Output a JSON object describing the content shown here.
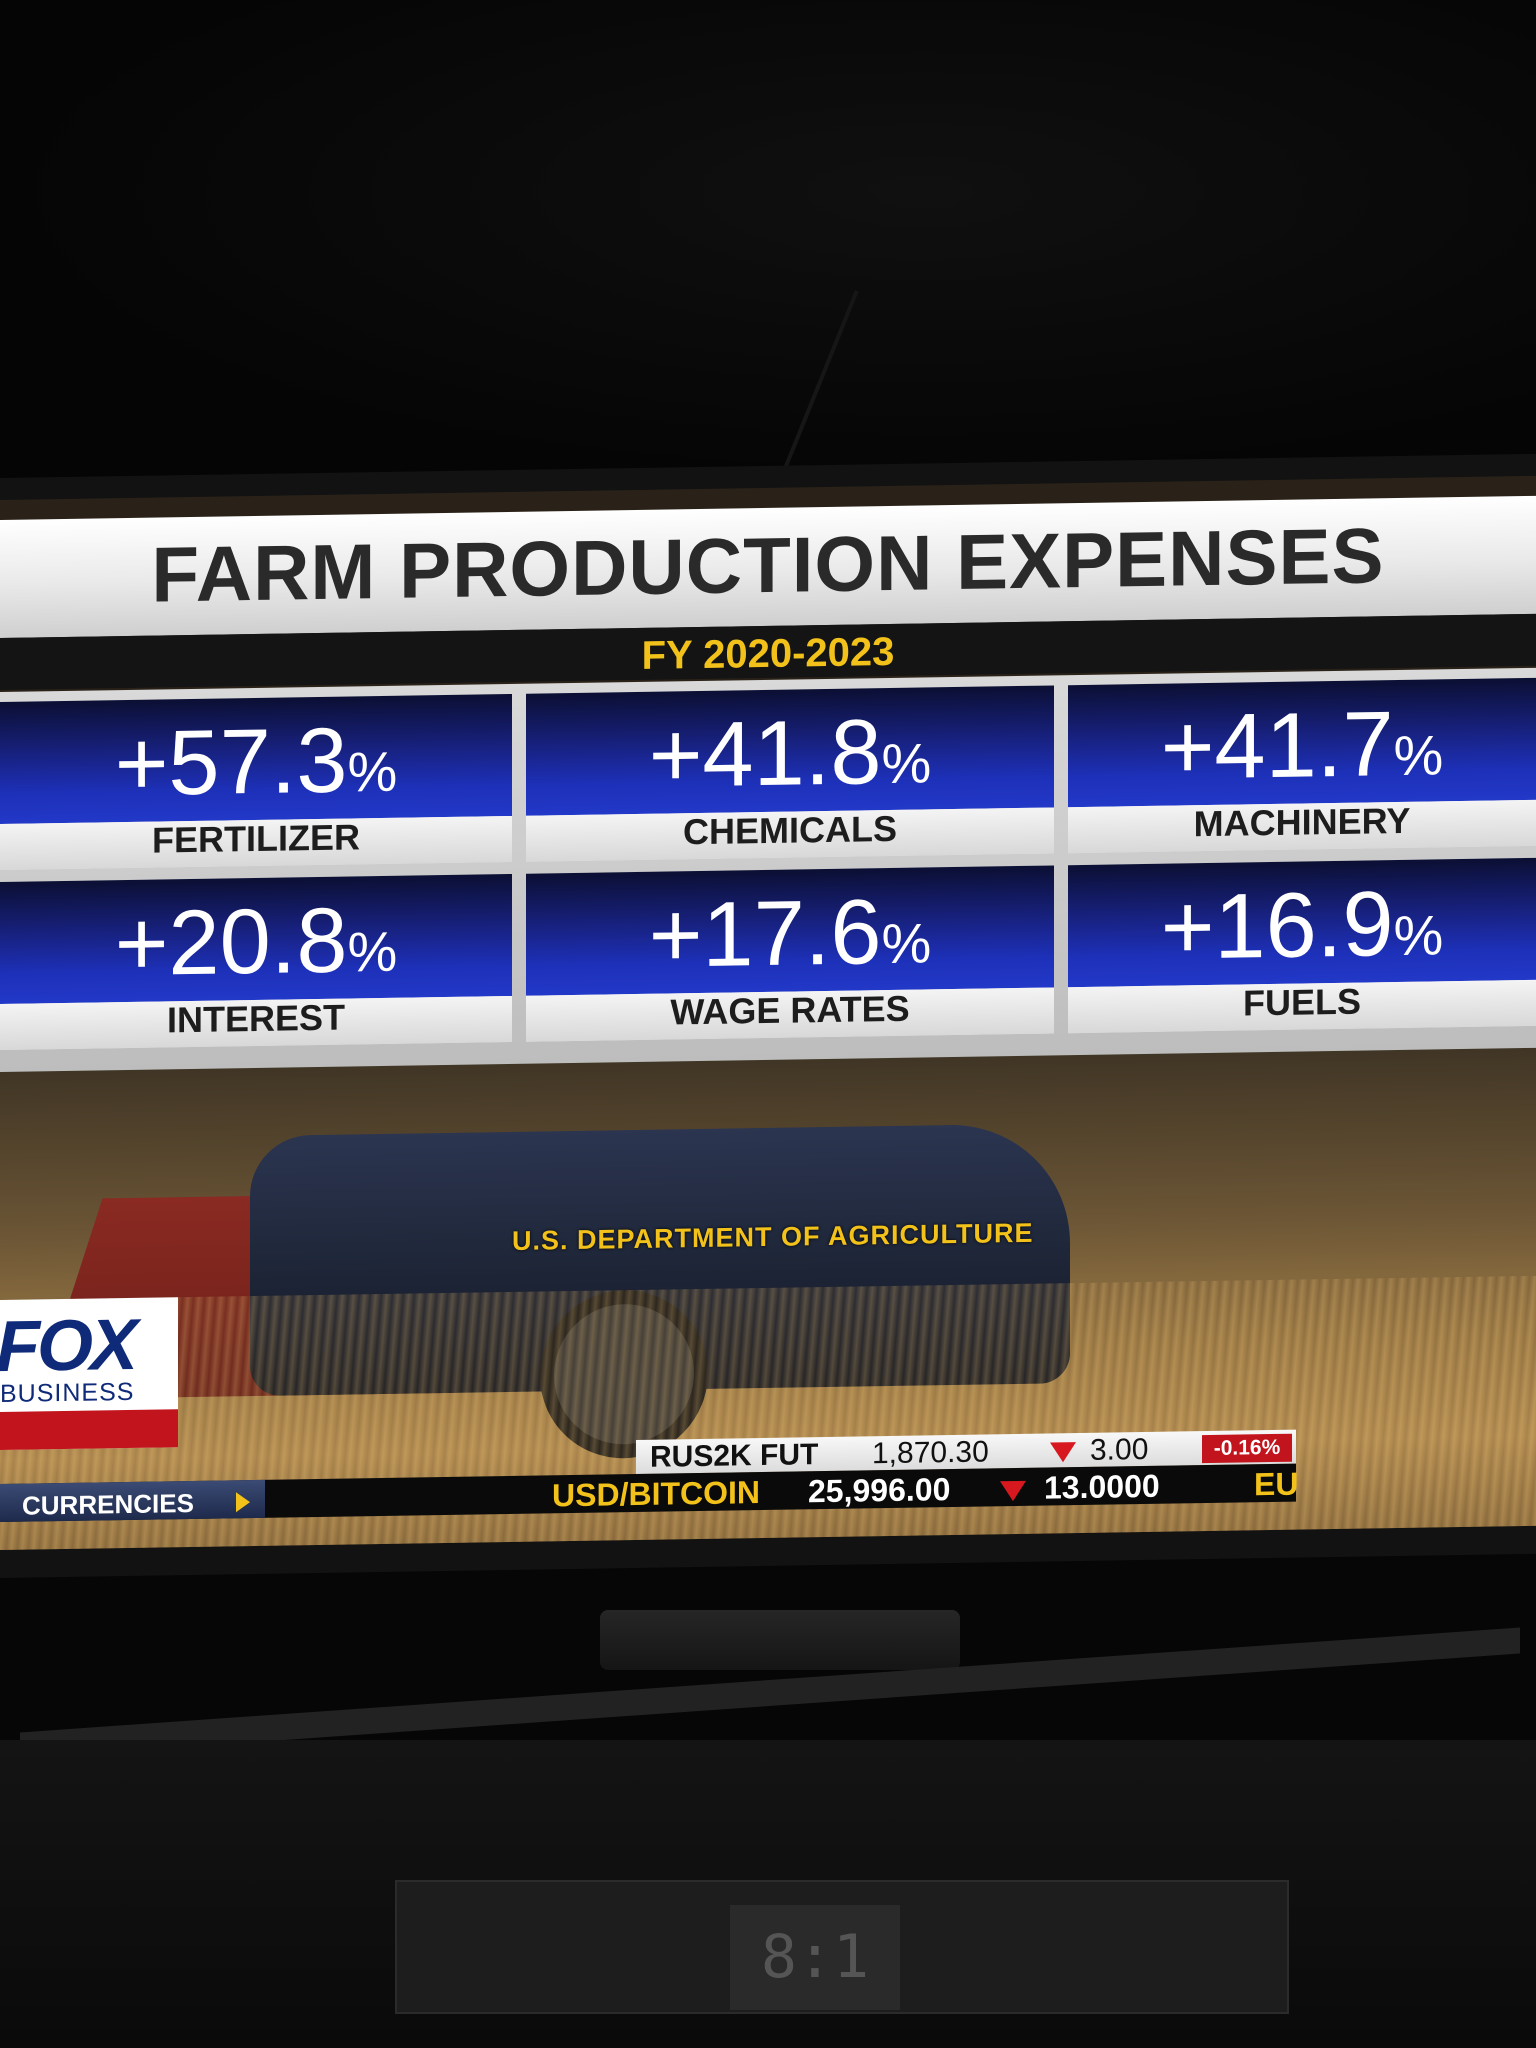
{
  "graphic": {
    "title": "FARM PRODUCTION EXPENSES",
    "subtitle": "FY 2020-2023",
    "tiles": [
      {
        "value": "+57.3",
        "unit": "%",
        "label": "FERTILIZER"
      },
      {
        "value": "+41.8",
        "unit": "%",
        "label": "CHEMICALS"
      },
      {
        "value": "+41.7",
        "unit": "%",
        "label": "MACHINERY"
      },
      {
        "value": "+20.8",
        "unit": "%",
        "label": "INTEREST"
      },
      {
        "value": "+17.6",
        "unit": "%",
        "label": "WAGE RATES"
      },
      {
        "value": "+16.9",
        "unit": "%",
        "label": "FUELS"
      }
    ],
    "source": "U.S. DEPARTMENT OF AGRICULTURE"
  },
  "logo": {
    "line1": "FOX",
    "line2": "BUSINESS"
  },
  "ticker": {
    "section": "CURRENCIES",
    "upper": {
      "symbol": "RUS2K FUT",
      "price": "1,870.30",
      "change": "3.00",
      "percent": "-0.16%"
    },
    "lower": {
      "symbol": "USD/BITCOIN",
      "price": "25,996.00",
      "change": "13.0000",
      "next": "EU"
    }
  },
  "clock": "8:1",
  "colors": {
    "accent_gold": "#f2c21b",
    "tile_blue": "#1d30b8",
    "down_red": "#d7191f"
  }
}
